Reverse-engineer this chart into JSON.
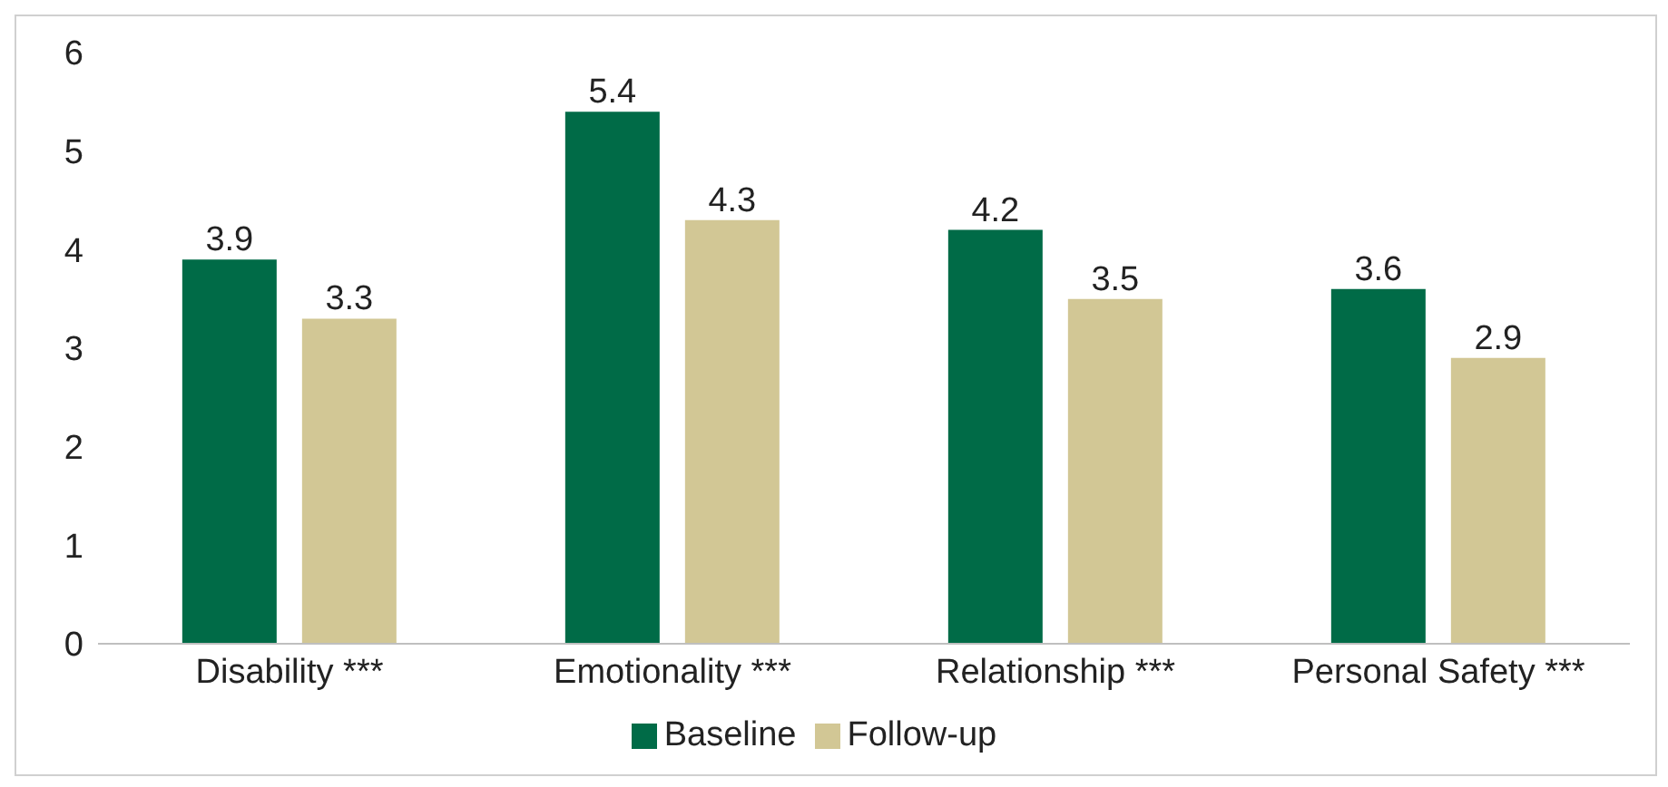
{
  "chart_data": {
    "type": "bar",
    "categories": [
      "Disability ***",
      "Emotionality ***",
      "Relationship ***",
      "Personal Safety ***"
    ],
    "series": [
      {
        "name": "Baseline",
        "color": "#006b47",
        "values": [
          3.9,
          5.4,
          4.2,
          3.6
        ]
      },
      {
        "name": "Follow-up",
        "color": "#d2c795",
        "values": [
          3.3,
          4.3,
          3.5,
          2.9
        ]
      }
    ],
    "ylim": [
      0,
      6
    ],
    "yticks": [
      0,
      1,
      2,
      3,
      4,
      5,
      6
    ],
    "grid": false,
    "legend": "bottom",
    "data_labels": true
  }
}
